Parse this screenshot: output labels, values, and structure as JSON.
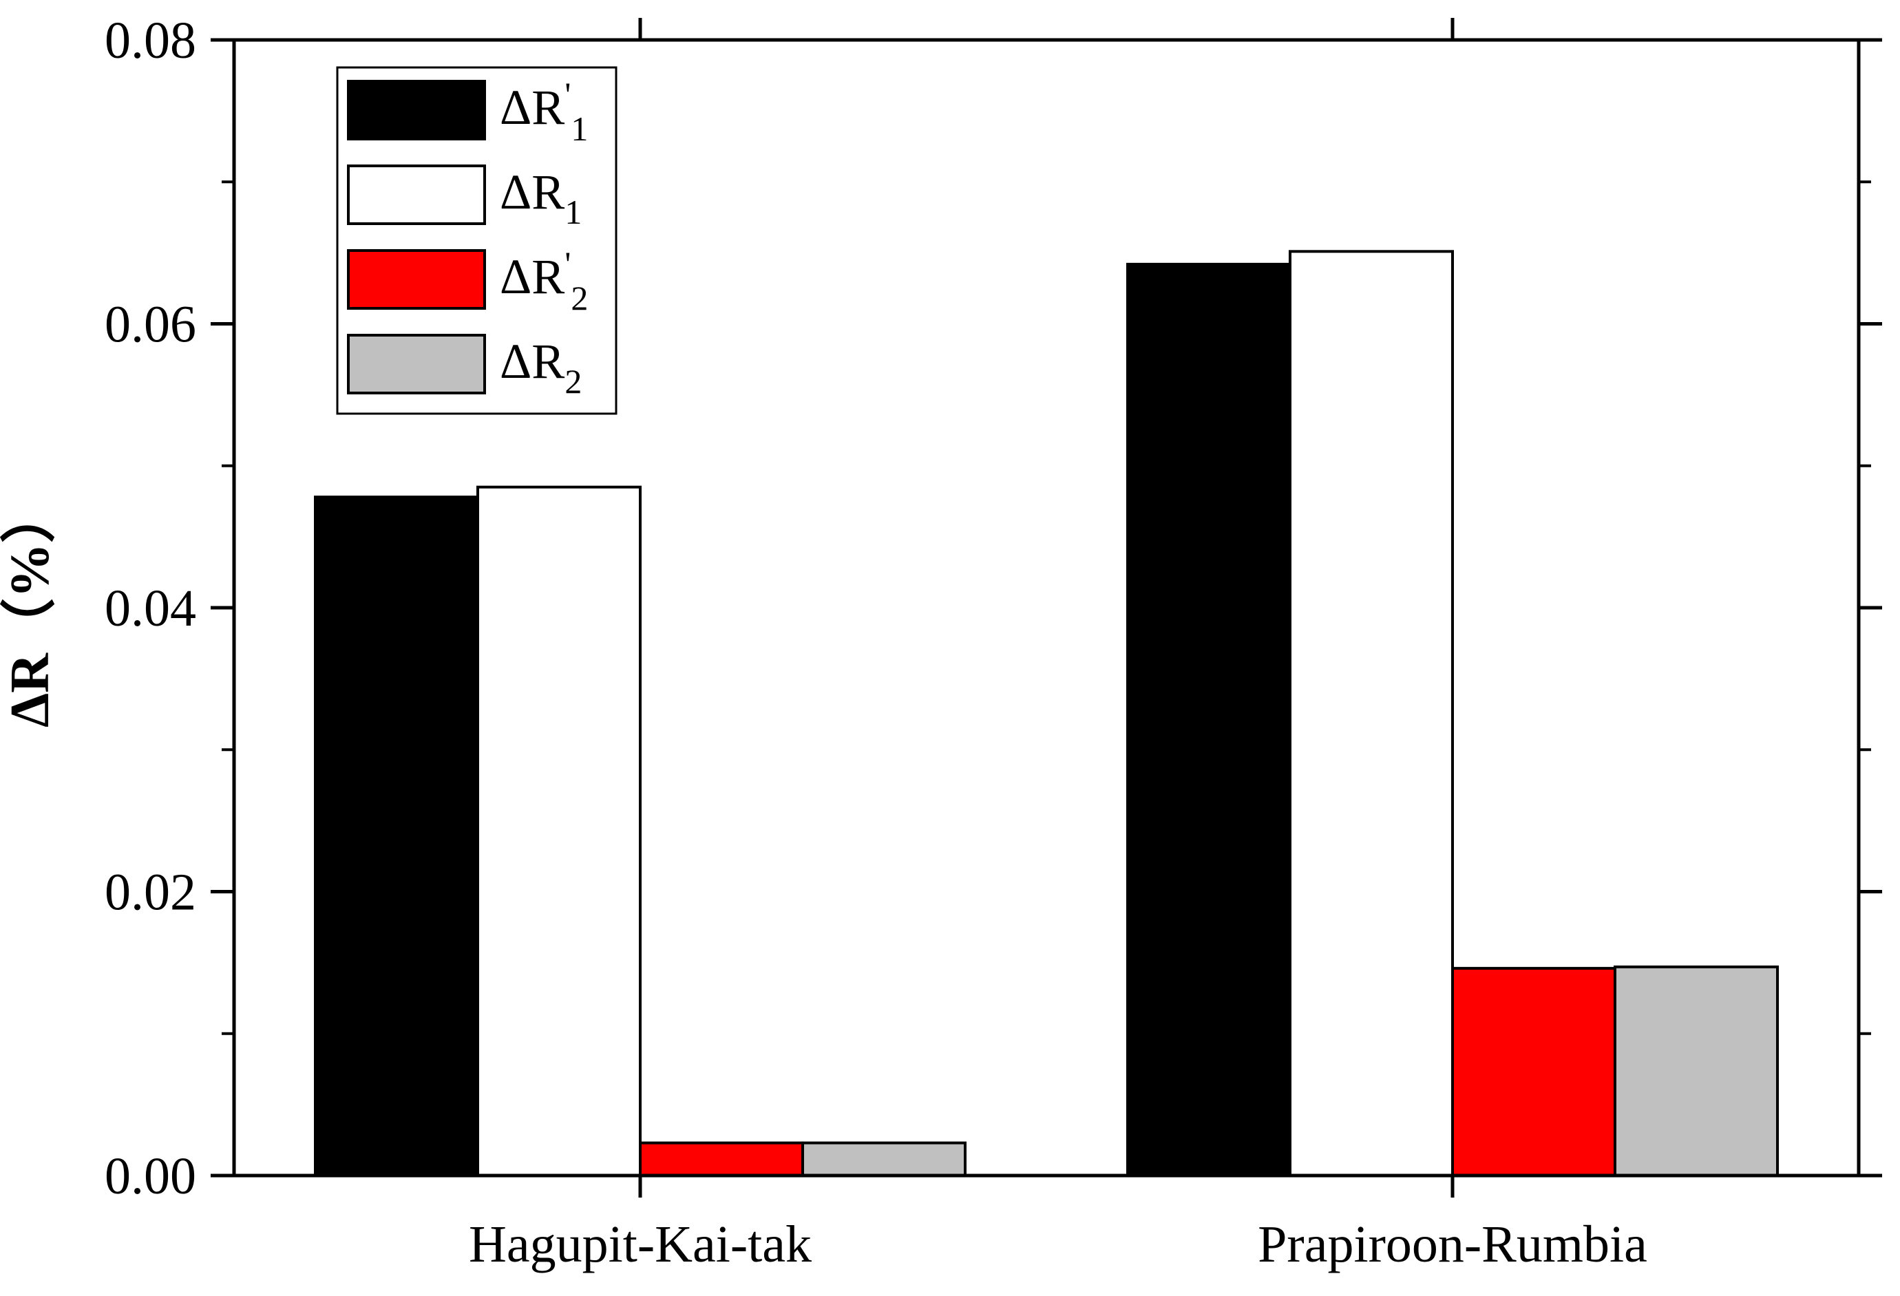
{
  "chart_data": {
    "type": "bar",
    "categories": [
      "Hagupit-Kai-tak",
      "Prapiroon-Rumbia"
    ],
    "series": [
      {
        "name": "ΔR'₁",
        "base": "ΔR",
        "prime": "'",
        "sub": "1",
        "color": "#000000",
        "values": [
          0.0478,
          0.0642
        ]
      },
      {
        "name": "ΔR₁",
        "base": "ΔR",
        "prime": "",
        "sub": "1",
        "color": "#ffffff",
        "values": [
          0.0485,
          0.0651
        ]
      },
      {
        "name": "ΔR'₂",
        "base": "ΔR",
        "prime": "'",
        "sub": "2",
        "color": "#ff0000",
        "values": [
          0.0023,
          0.0146
        ]
      },
      {
        "name": "ΔR₂",
        "base": "ΔR",
        "prime": "",
        "sub": "2",
        "color": "#c0c0c0",
        "values": [
          0.0023,
          0.0147
        ]
      }
    ],
    "ylabel": "ΔR（%）",
    "xlabel": "",
    "title": "",
    "ylim": [
      0,
      0.08
    ],
    "yticks": [
      "0.00",
      "0.02",
      "0.04",
      "0.06",
      "0.08"
    ],
    "ytick_values": [
      0,
      0.02,
      0.04,
      0.06,
      0.08
    ],
    "grid": false,
    "legend_position": "top-left"
  }
}
